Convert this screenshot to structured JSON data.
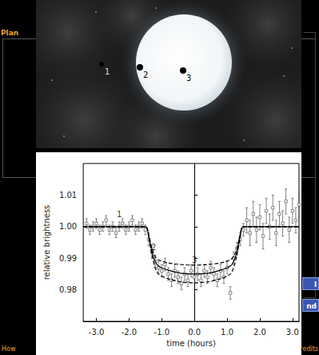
{
  "screen": {
    "title_fragment": "Plan",
    "footer_left": "How",
    "footer_right": "redits",
    "buttons": [
      "l",
      "nd"
    ]
  },
  "illustration": {
    "labels": [
      "1",
      "2",
      "3"
    ]
  },
  "chart_data": {
    "type": "scatter",
    "x_label": "time (hours)",
    "y_label": "relative brightness",
    "xlim": [
      -3.4,
      3.2
    ],
    "ylim": [
      0.97,
      1.02
    ],
    "xticks": [
      {
        "value": -3,
        "label": "-3.0"
      },
      {
        "value": -2,
        "label": "-2.0"
      },
      {
        "value": -1,
        "label": "-1.0"
      },
      {
        "value": 0,
        "label": "0.0"
      },
      {
        "value": 1,
        "label": "1.0"
      },
      {
        "value": 2,
        "label": "2.0"
      },
      {
        "value": 3,
        "label": "3.0"
      }
    ],
    "yticks": [
      0.98,
      0.99,
      {
        "value": 1.0,
        "label": "1.00"
      },
      1.01
    ],
    "grid": false,
    "series": [
      {
        "type": "scatter",
        "color": "#666666",
        "marker": "square",
        "x": [
          -3.3,
          -3.2,
          -3.1,
          -3.0,
          -2.9,
          -2.8,
          -2.7,
          -2.6,
          -2.5,
          -2.4,
          -2.3,
          -2.2,
          -2.1,
          -2.0,
          -1.9,
          -1.8,
          -1.7,
          -1.6,
          -1.5,
          -1.4,
          -1.3,
          -1.2,
          -1.1,
          -1.0,
          -0.9,
          -0.8,
          -0.7,
          -0.6,
          -0.5,
          -0.4,
          -0.3,
          -0.2,
          -0.1,
          0.0,
          0.1,
          0.2,
          0.3,
          0.4,
          0.5,
          0.6,
          0.7,
          0.8,
          0.9,
          1.0,
          1.1,
          1.2,
          1.3,
          1.4,
          1.5,
          1.6,
          1.7,
          1.8,
          1.9,
          2.0,
          2.1,
          2.2,
          2.3,
          2.4,
          2.5,
          2.6,
          2.7,
          2.8,
          2.9,
          3.0,
          3.1,
          3.2
        ],
        "values": [
          1.001,
          0.999,
          1.0,
          1.001,
          0.999,
          1.0,
          1.002,
          0.999,
          1.0,
          0.998,
          1.0,
          1.001,
          0.999,
          1.0,
          1.002,
          0.999,
          1.0,
          1.001,
          0.999,
          0.996,
          0.992,
          0.989,
          0.987,
          0.986,
          0.988,
          0.985,
          0.983,
          0.986,
          0.984,
          0.982,
          0.985,
          0.983,
          0.986,
          0.984,
          0.985,
          0.983,
          0.986,
          0.984,
          0.987,
          0.985,
          0.983,
          0.986,
          0.984,
          0.987,
          0.979,
          0.99,
          0.993,
          0.996,
          0.999,
          1.002,
          0.998,
          1.004,
          0.999,
          1.003,
          0.997,
          1.005,
          1.0,
          1.006,
          0.998,
          1.004,
          1.001,
          1.008,
          0.999,
          1.005,
          1.002,
          1.007
        ],
        "errors": [
          0.0015,
          0.0015,
          0.0015,
          0.0015,
          0.0015,
          0.0015,
          0.0015,
          0.0015,
          0.0015,
          0.0015,
          0.0015,
          0.0015,
          0.0015,
          0.0015,
          0.0015,
          0.0015,
          0.0015,
          0.0015,
          0.0015,
          0.002,
          0.002,
          0.002,
          0.002,
          0.002,
          0.002,
          0.002,
          0.002,
          0.002,
          0.002,
          0.002,
          0.002,
          0.002,
          0.002,
          0.002,
          0.002,
          0.002,
          0.002,
          0.002,
          0.002,
          0.002,
          0.002,
          0.002,
          0.002,
          0.002,
          0.002,
          0.002,
          0.002,
          0.002,
          0.002,
          0.004,
          0.004,
          0.004,
          0.004,
          0.004,
          0.004,
          0.004,
          0.004,
          0.004,
          0.004,
          0.004,
          0.004,
          0.004,
          0.004,
          0.004,
          0.004,
          0.004
        ]
      },
      {
        "type": "line",
        "color": "#000000",
        "line_style": "solid",
        "x": [
          -3.4,
          -1.5,
          -1.4,
          -1.3,
          -1.2,
          -1.1,
          -0.8,
          -0.4,
          0.0,
          0.4,
          0.8,
          1.1,
          1.2,
          1.3,
          1.4,
          1.5,
          3.2
        ],
        "values": [
          1.0,
          1.0,
          0.997,
          0.992,
          0.989,
          0.9875,
          0.9862,
          0.9852,
          0.985,
          0.9852,
          0.9862,
          0.9875,
          0.989,
          0.992,
          0.997,
          1.0,
          1.0
        ]
      },
      {
        "type": "line",
        "color": "#000000",
        "line_style": "dashed",
        "x": [
          -3.4,
          -1.5,
          -1.4,
          -1.3,
          -1.2,
          -1.1,
          -0.8,
          -0.4,
          0.0,
          0.4,
          0.8,
          1.1,
          1.2,
          1.3,
          1.4,
          1.5,
          3.2
        ],
        "values": [
          1.0,
          1.0,
          0.9975,
          0.993,
          0.9905,
          0.9895,
          0.9885,
          0.988,
          0.9878,
          0.988,
          0.9885,
          0.9895,
          0.9905,
          0.993,
          0.9975,
          1.0,
          1.0
        ]
      },
      {
        "type": "line",
        "color": "#000000",
        "line_style": "dashed",
        "x": [
          -3.4,
          -1.5,
          -1.4,
          -1.3,
          -1.2,
          -1.1,
          -0.8,
          -0.4,
          0.0,
          0.4,
          0.8,
          1.1,
          1.2,
          1.3,
          1.4,
          1.5,
          3.2
        ],
        "values": [
          1.0,
          1.0,
          0.9965,
          0.991,
          0.987,
          0.985,
          0.9835,
          0.9825,
          0.9822,
          0.9825,
          0.9835,
          0.985,
          0.987,
          0.991,
          0.9965,
          1.0,
          1.0
        ]
      }
    ],
    "annotations": [
      {
        "text": "1",
        "x": -2.3,
        "y": 1.004
      },
      {
        "text": "2",
        "x": -1.25,
        "y": 0.9935
      },
      {
        "text": "3",
        "x": 0.0,
        "y": 0.9895
      }
    ]
  }
}
